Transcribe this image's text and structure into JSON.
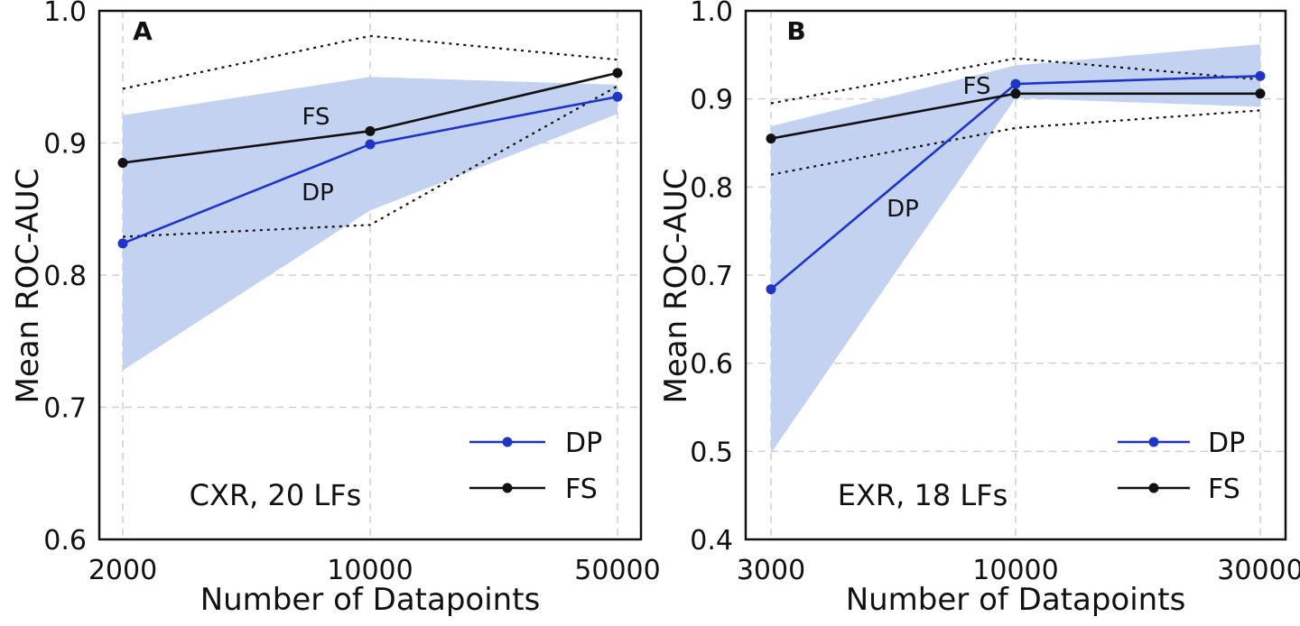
{
  "chart_data": [
    {
      "panel": "A",
      "type": "line",
      "annotation": "CXR, 20 LFs",
      "xlabel": "Number of Datapoints",
      "ylabel": "Mean ROC-AUC",
      "x_categories": [
        "2000",
        "10000",
        "50000"
      ],
      "ylim": [
        0.6,
        1.0
      ],
      "yticks": [
        "0.6",
        "0.7",
        "0.8",
        "0.9",
        "1.0"
      ],
      "grid": true,
      "legend_position": "lower-right",
      "series": [
        {
          "name": "DP",
          "color": "#1f35c7",
          "values": [
            0.824,
            0.899,
            0.935
          ],
          "band_low": [
            0.728,
            0.849,
            0.922
          ],
          "band_high": [
            0.921,
            0.95,
            0.944
          ]
        },
        {
          "name": "FS",
          "color": "#111111",
          "values": [
            0.885,
            0.909,
            0.953
          ],
          "band_low": [
            0.829,
            0.838,
            0.943
          ],
          "band_high": [
            0.941,
            0.981,
            0.963
          ]
        }
      ],
      "series_labels": {
        "FS": "FS",
        "DP": "DP"
      },
      "band_color": "#c3d2f0"
    },
    {
      "panel": "B",
      "type": "line",
      "annotation": "EXR, 18 LFs",
      "xlabel": "Number of Datapoints",
      "ylabel": "Mean ROC-AUC",
      "x_categories": [
        "3000",
        "10000",
        "30000"
      ],
      "ylim": [
        0.4,
        1.0
      ],
      "yticks": [
        "0.4",
        "0.5",
        "0.6",
        "0.7",
        "0.8",
        "0.9",
        "1.0"
      ],
      "grid": true,
      "legend_position": "lower-right",
      "series": [
        {
          "name": "DP",
          "color": "#1f35c7",
          "values": [
            0.684,
            0.917,
            0.926
          ],
          "band_low": [
            0.498,
            0.901,
            0.891
          ],
          "band_high": [
            0.869,
            0.938,
            0.962
          ]
        },
        {
          "name": "FS",
          "color": "#111111",
          "values": [
            0.855,
            0.906,
            0.906
          ],
          "band_low": [
            0.814,
            0.867,
            0.887
          ],
          "band_high": [
            0.895,
            0.946,
            0.922
          ]
        }
      ],
      "series_labels": {
        "FS": "FS",
        "DP": "DP"
      },
      "band_color": "#c3d2f0"
    }
  ]
}
